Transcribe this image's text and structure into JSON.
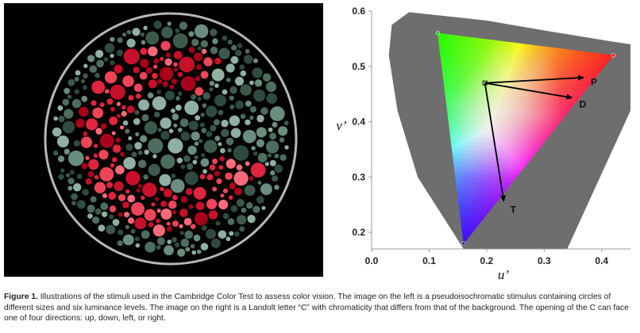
{
  "left_image": {
    "kind": "pseudoisochromatic stimulus",
    "colors": {
      "background": "#000000",
      "ring": "#b8b8b8",
      "greens": [
        "#2f4a3e",
        "#3c5a4c",
        "#4d6e5e",
        "#6a8e7e",
        "#8fb0a2"
      ],
      "reds": [
        "#a8001a",
        "#c8102a",
        "#e0253e",
        "#f04458",
        "#ff6a7a"
      ]
    }
  },
  "chart_data": {
    "type": "scatter",
    "xlabel": "u’",
    "ylabel": "v’",
    "xlim": [
      0.0,
      0.45
    ],
    "ylim": [
      0.17,
      0.6
    ],
    "xticks": [
      0.0,
      0.1,
      0.2,
      0.3,
      0.4
    ],
    "yticks": [
      0.2,
      0.3,
      0.4,
      0.5,
      0.6
    ],
    "xtick_labels": [
      "0.0",
      "0.1",
      "0.2",
      "0.3",
      "0.4"
    ],
    "ytick_labels": [
      "0.2",
      "0.3",
      "0.4",
      "0.5",
      "0.6"
    ],
    "primaries": {
      "green": {
        "u": 0.115,
        "v": 0.56,
        "color": "#22cc22"
      },
      "red": {
        "u": 0.42,
        "v": 0.52,
        "color": "#ff1010"
      },
      "blue": {
        "u": 0.16,
        "v": 0.18,
        "color": "#3010b0"
      }
    },
    "white_point": {
      "u": 0.197,
      "v": 0.47
    },
    "vectors": [
      {
        "label": "P",
        "end_u": 0.37,
        "end_v": 0.48
      },
      {
        "label": "D",
        "end_u": 0.35,
        "end_v": 0.443
      },
      {
        "label": "T",
        "end_u": 0.23,
        "end_v": 0.255
      }
    ],
    "grid": false,
    "colors": {
      "locus_fill": "#6e6e6e",
      "axis": "#999999"
    }
  },
  "caption": {
    "label": "Figure 1.",
    "text": " Illustrations of the stimuli used in the Cambridge Color Test to assess color vision. The image on the left is a pseudoisochromatic stimulus containing circles of different sizes and six luminance levels. The image on the right is a Landolt letter “C” with chromaticity that differs from that of the background. The opening of the C can face one of four directions: up, down, left, or right."
  }
}
